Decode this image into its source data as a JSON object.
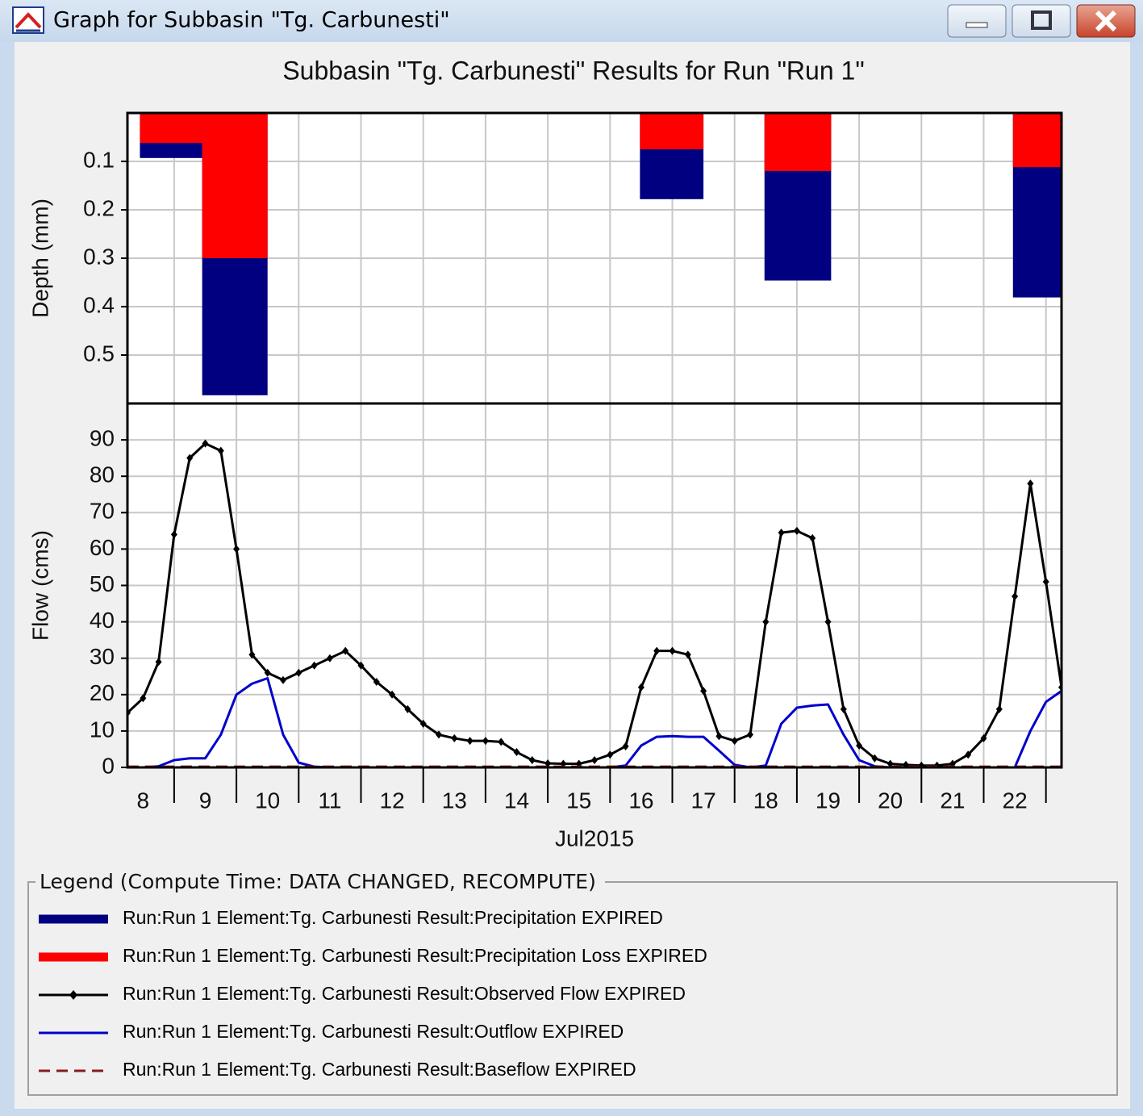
{
  "window": {
    "title": "Graph for Subbasin \"Tg. Carbunesti\""
  },
  "legend": {
    "title": "Legend (Compute Time: DATA CHANGED, RECOMPUTE)"
  },
  "chart_data": [
    {
      "type": "bar",
      "title": "Subbasin \"Tg. Carbunesti\" Results for Run \"Run 1\"",
      "ylabel": "Depth (mm)",
      "ylim": [
        0,
        0.6
      ],
      "invert_y": true,
      "yticks": [
        0.1,
        0.2,
        0.3,
        0.4,
        0.5
      ],
      "xlim": [
        8.25,
        23.25
      ],
      "xgrid": [
        9,
        10,
        11,
        12,
        13,
        14,
        15,
        16,
        17,
        18,
        19,
        20,
        21,
        22,
        23
      ],
      "grid": true,
      "series": [
        {
          "name": "Run:Run 1 Element:Tg. Carbunesti Result:Precipitation EXPIRED",
          "color": "#000080",
          "x": [
            8.45,
            9.45,
            16.48,
            18.48,
            22.47
          ],
          "x_end": [
            9.45,
            10.5,
            17.5,
            19.55,
            23.47
          ],
          "values": [
            0.093,
            0.583,
            0.178,
            0.346,
            0.381
          ]
        },
        {
          "name": "Run:Run 1 Element:Tg. Carbunesti Result:Precipitation Loss EXPIRED",
          "color": "#ff0000",
          "x": [
            8.45,
            9.45,
            16.48,
            18.48,
            22.47
          ],
          "x_end": [
            9.45,
            10.5,
            17.5,
            19.55,
            23.47
          ],
          "values": [
            0.062,
            0.3,
            0.075,
            0.12,
            0.112
          ]
        }
      ]
    },
    {
      "type": "line",
      "ylabel": "Flow (cms)",
      "xlabel": "Jul2015",
      "ylim": [
        0,
        100
      ],
      "yticks": [
        0,
        10,
        20,
        30,
        40,
        50,
        60,
        70,
        80,
        90
      ],
      "xlim": [
        8.25,
        23.25
      ],
      "xgrid": [
        9,
        10,
        11,
        12,
        13,
        14,
        15,
        16,
        17,
        18,
        19,
        20,
        21,
        22,
        23
      ],
      "grid": true,
      "xticks": [
        {
          "value": 8.5,
          "label": "8"
        },
        {
          "value": 9.5,
          "label": "9"
        },
        {
          "value": 10.5,
          "label": "10"
        },
        {
          "value": 11.5,
          "label": "11"
        },
        {
          "value": 12.5,
          "label": "12"
        },
        {
          "value": 13.5,
          "label": "13"
        },
        {
          "value": 14.5,
          "label": "14"
        },
        {
          "value": 15.5,
          "label": "15"
        },
        {
          "value": 16.5,
          "label": "16"
        },
        {
          "value": 17.5,
          "label": "17"
        },
        {
          "value": 18.5,
          "label": "18"
        },
        {
          "value": 19.5,
          "label": "19"
        },
        {
          "value": 20.5,
          "label": "20"
        },
        {
          "value": 21.5,
          "label": "21"
        },
        {
          "value": 22.5,
          "label": "22"
        }
      ],
      "series": [
        {
          "name": "Run:Run 1 Element:Tg. Carbunesti Result:Observed Flow EXPIRED",
          "color": "#000000",
          "marker": "diamond",
          "x": [
            8.25,
            8.5,
            8.75,
            9,
            9.25,
            9.5,
            9.75,
            10,
            10.25,
            10.5,
            10.75,
            11,
            11.25,
            11.5,
            11.75,
            12,
            12.25,
            12.5,
            12.75,
            13,
            13.25,
            13.5,
            13.75,
            14,
            14.25,
            14.5,
            14.75,
            15,
            15.25,
            15.5,
            15.75,
            16,
            16.25,
            16.5,
            16.75,
            17,
            17.25,
            17.5,
            17.75,
            18,
            18.25,
            18.5,
            18.75,
            19,
            19.25,
            19.5,
            19.75,
            20,
            20.25,
            20.5,
            20.75,
            21,
            21.25,
            21.5,
            21.75,
            22,
            22.25,
            22.5,
            22.75,
            23,
            23.25
          ],
          "values": [
            15,
            19,
            29,
            64,
            85,
            89,
            87,
            60,
            31,
            26,
            24,
            26,
            28,
            30,
            32,
            28,
            23.5,
            20,
            16,
            12,
            9,
            8,
            7.3,
            7.3,
            7,
            4.2,
            2,
            1.1,
            1,
            1,
            2,
            3.5,
            5.8,
            22,
            32,
            32,
            31,
            21,
            8.6,
            7.3,
            9,
            40,
            64.5,
            65,
            63,
            40,
            16,
            6,
            2.5,
            1,
            0.7,
            0.5,
            0.5,
            1,
            3.5,
            8,
            16,
            47,
            78,
            51,
            22
          ]
        },
        {
          "name": "Run:Run 1 Element:Tg. Carbunesti Result:Outflow EXPIRED",
          "color": "#0000cc",
          "x": [
            8.25,
            8.5,
            8.75,
            9,
            9.25,
            9.5,
            9.75,
            10,
            10.25,
            10.5,
            10.75,
            11,
            11.25,
            11.5,
            11.75,
            12,
            12.25,
            12.5,
            12.75,
            13,
            13.25,
            13.5,
            13.75,
            14,
            14.25,
            14.5,
            14.75,
            15,
            15.25,
            15.5,
            15.75,
            16,
            16.25,
            16.5,
            16.75,
            17,
            17.25,
            17.5,
            17.75,
            18,
            18.25,
            18.5,
            18.75,
            19,
            19.25,
            19.5,
            19.75,
            20,
            20.25,
            20.5,
            20.75,
            21,
            21.25,
            21.5,
            21.75,
            22,
            22.25,
            22.5,
            22.75,
            23,
            23.25
          ],
          "values": [
            0,
            0,
            0.3,
            2,
            2.5,
            2.5,
            9,
            20,
            23,
            24.5,
            9,
            1.3,
            0.2,
            0,
            0,
            0,
            0,
            0,
            0,
            0,
            0,
            0,
            0,
            0,
            0,
            0,
            0,
            0,
            0,
            0,
            0,
            0,
            0.5,
            6,
            8.4,
            8.6,
            8.4,
            8.4,
            4.6,
            0.7,
            0,
            0.5,
            12,
            16.4,
            17,
            17.3,
            9,
            2,
            0.3,
            0,
            0,
            0,
            0,
            0,
            0,
            0,
            0,
            0,
            10,
            18,
            21
          ]
        },
        {
          "name": "Run:Run 1 Element:Tg. Carbunesti Result:Baseflow EXPIRED",
          "color": "#8b1a1a",
          "dash": true,
          "x": [
            8.25,
            23.25
          ],
          "values": [
            0.2,
            0.2
          ]
        }
      ]
    }
  ]
}
